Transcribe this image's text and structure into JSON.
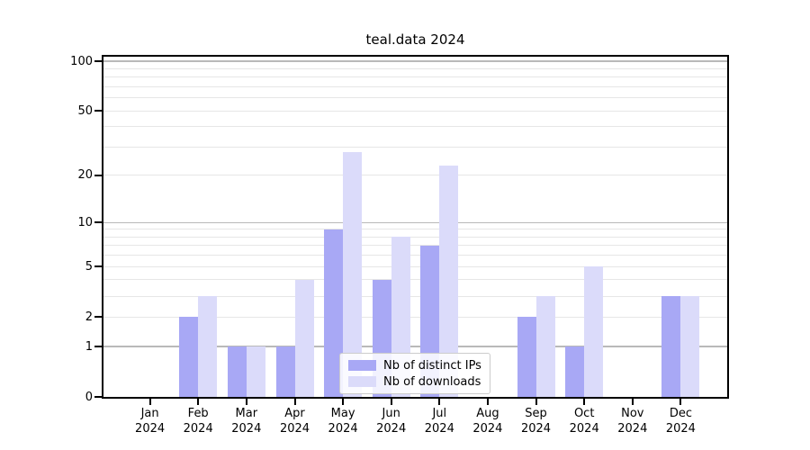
{
  "title": "teal.data 2024",
  "chart_data": {
    "type": "bar",
    "title": "teal.data 2024",
    "yscale": "log1p",
    "ylim": [
      0,
      100
    ],
    "grid": true,
    "legend_position": "bottom-center-inside",
    "categories": [
      "Jan",
      "Feb",
      "Mar",
      "Apr",
      "May",
      "Jun",
      "Jul",
      "Aug",
      "Sep",
      "Oct",
      "Nov",
      "Dec"
    ],
    "category_year": "2024",
    "series": [
      {
        "name": "Nb of distinct IPs",
        "slug": "distinct-ips",
        "color": "#a8a8f5",
        "values": [
          0,
          2,
          1,
          1,
          9,
          4,
          7,
          0,
          2,
          1,
          0,
          3
        ]
      },
      {
        "name": "Nb of downloads",
        "slug": "downloads",
        "color": "#dbdbfa",
        "values": [
          0,
          3,
          1,
          4,
          28,
          8,
          23,
          0,
          3,
          5,
          0,
          3
        ]
      }
    ],
    "y_tick_labels": [
      0,
      1,
      2,
      5,
      10,
      20,
      50,
      100
    ],
    "major_gridlines": [
      1,
      10,
      100
    ],
    "minor_gridlines": [
      2,
      3,
      4,
      5,
      6,
      7,
      8,
      9,
      20,
      30,
      40,
      50,
      60,
      70,
      80,
      90
    ]
  },
  "colors": {
    "background": "#ffffff",
    "frame": "#000000",
    "text": "#000000",
    "minor_grid": "#e6e6e6",
    "major_grid": "#b9b9b9",
    "legend_border": "#cccccc"
  }
}
